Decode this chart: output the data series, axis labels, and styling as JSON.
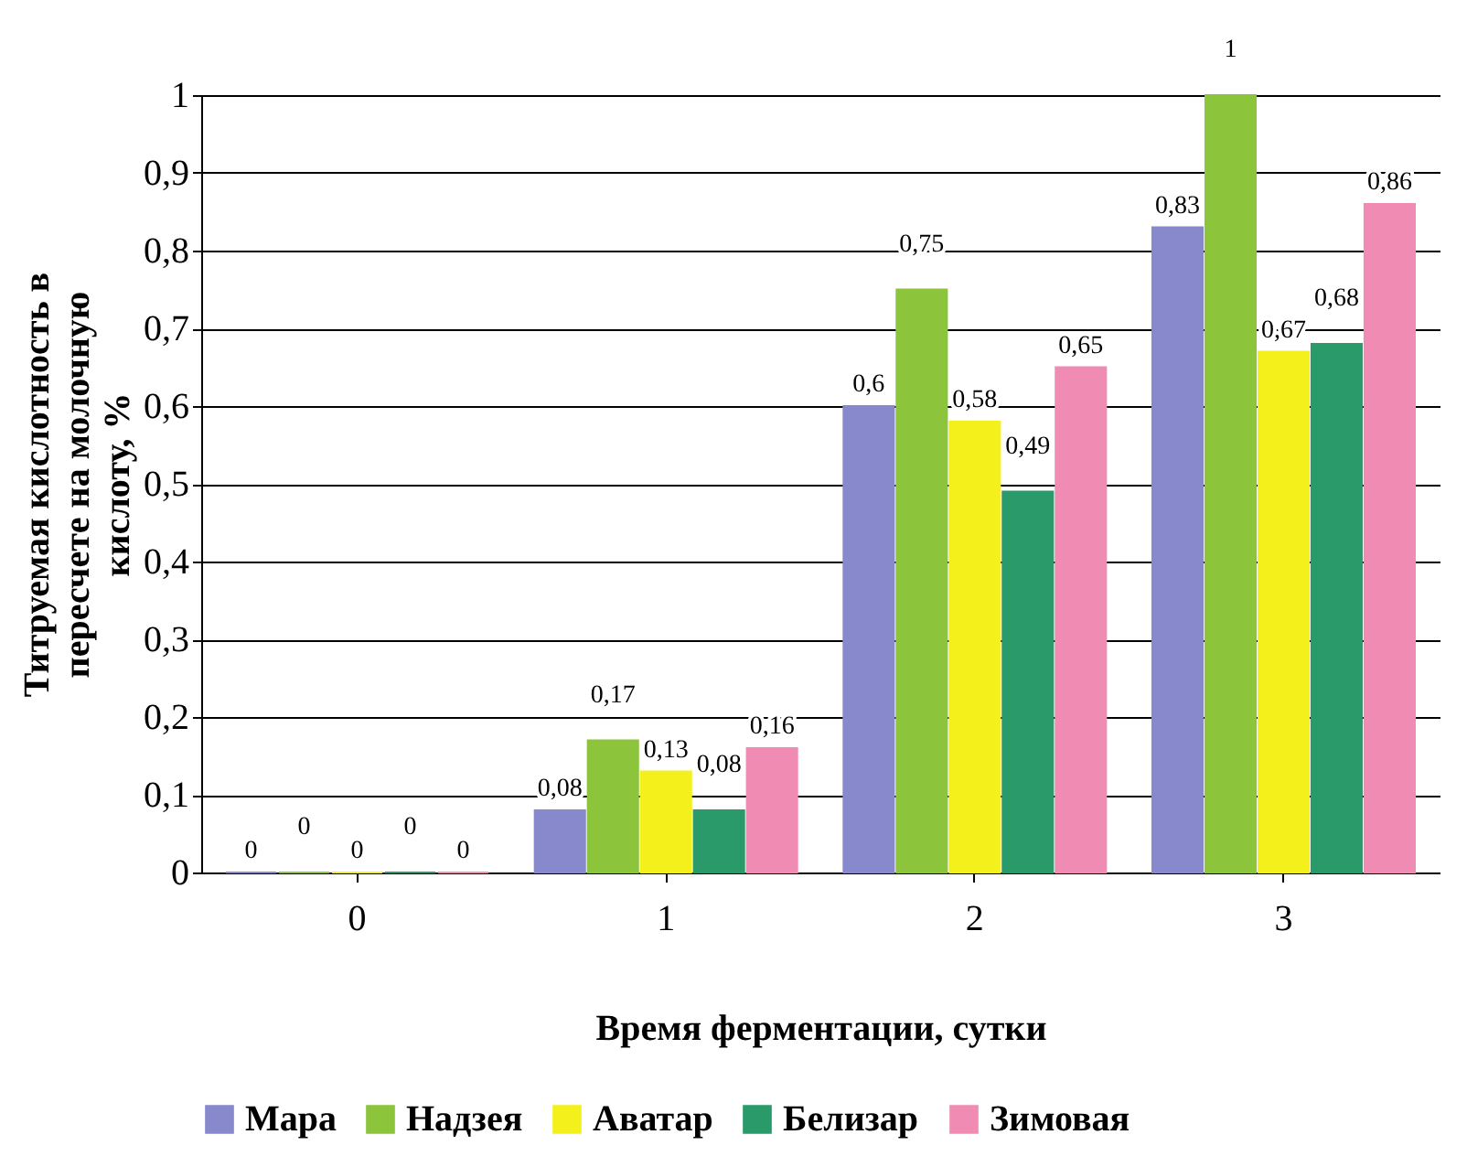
{
  "chart_data": {
    "type": "bar",
    "xlabel": "Время ферментации, сутки",
    "ylabel": "Титруемая кислотность в пересчете на молочную кислоту, %",
    "categories": [
      "0",
      "1",
      "2",
      "3"
    ],
    "series": [
      {
        "name": "Мара",
        "color": "#8888cc",
        "values": [
          0,
          0.08,
          0.6,
          0.83
        ],
        "value_labels": [
          "0",
          "0,08",
          "0,6",
          "0,83"
        ]
      },
      {
        "name": "Надзея",
        "color": "#8cc43c",
        "values": [
          0,
          0.17,
          0.75,
          1
        ],
        "value_labels": [
          "0",
          "0,17",
          "0,75",
          "1"
        ]
      },
      {
        "name": "Аватар",
        "color": "#f4f01c",
        "values": [
          0,
          0.13,
          0.58,
          0.67
        ],
        "value_labels": [
          "0",
          "0,13",
          "0,58",
          "0,67"
        ]
      },
      {
        "name": "Белизар",
        "color": "#2a9a6a",
        "values": [
          0,
          0.08,
          0.49,
          0.68
        ],
        "value_labels": [
          "0",
          "0,08",
          "0,49",
          "0,68"
        ]
      },
      {
        "name": "Зимовая",
        "color": "#f08cb4",
        "values": [
          0,
          0.16,
          0.65,
          0.86
        ],
        "value_labels": [
          "0",
          "0,16",
          "0,65",
          "0,86"
        ]
      }
    ],
    "ylim": [
      0,
      1
    ],
    "yticks": [
      0,
      {
        "value": 0.1,
        "label": "0,1"
      },
      {
        "value": 0.2,
        "label": "0,2"
      },
      {
        "value": 0.3,
        "label": "0,3"
      },
      {
        "value": 0.4,
        "label": "0,4"
      },
      {
        "value": 0.5,
        "label": "0,5"
      },
      {
        "value": 0.6,
        "label": "0,6"
      },
      {
        "value": 0.7,
        "label": "0,7"
      },
      {
        "value": 0.8,
        "label": "0,8"
      },
      {
        "value": 0.9,
        "label": "0,9"
      },
      1
    ],
    "grid": "y",
    "legend": "bottom"
  }
}
